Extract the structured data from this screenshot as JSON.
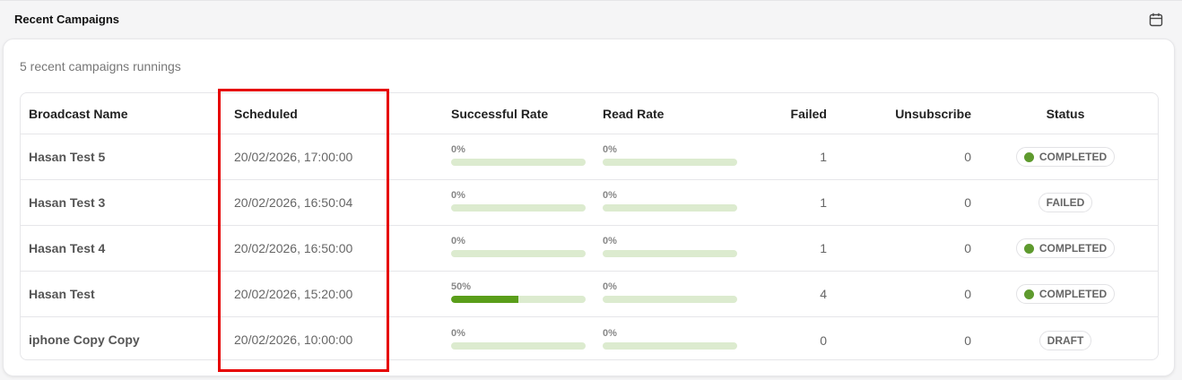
{
  "header": {
    "title": "Recent Campaigns",
    "calendar_icon": "calendar-icon"
  },
  "card": {
    "subtitle": "5 recent campaigns runnings"
  },
  "table": {
    "columns": {
      "name": "Broadcast Name",
      "scheduled": "Scheduled",
      "success": "Successful Rate",
      "read": "Read Rate",
      "failed": "Failed",
      "unsub": "Unsubscribe",
      "status": "Status"
    },
    "rows": [
      {
        "name": "Hasan Test 5",
        "scheduled": "20/02/2026, 17:00:00",
        "success_label": "0%",
        "success_value": 0,
        "read_label": "0%",
        "read_value": 0,
        "failed": "1",
        "unsub": "0",
        "status": "COMPLETED",
        "status_dot": true
      },
      {
        "name": "Hasan Test 3",
        "scheduled": "20/02/2026, 16:50:04",
        "success_label": "0%",
        "success_value": 0,
        "read_label": "0%",
        "read_value": 0,
        "failed": "1",
        "unsub": "0",
        "status": "FAILED",
        "status_dot": false
      },
      {
        "name": "Hasan Test 4",
        "scheduled": "20/02/2026, 16:50:00",
        "success_label": "0%",
        "success_value": 0,
        "read_label": "0%",
        "read_value": 0,
        "failed": "1",
        "unsub": "0",
        "status": "COMPLETED",
        "status_dot": true
      },
      {
        "name": "Hasan Test",
        "scheduled": "20/02/2026, 15:20:00",
        "success_label": "50%",
        "success_value": 50,
        "read_label": "0%",
        "read_value": 0,
        "failed": "4",
        "unsub": "0",
        "status": "COMPLETED",
        "status_dot": true
      },
      {
        "name": "iphone Copy Copy",
        "scheduled": "20/02/2026, 10:00:00",
        "success_label": "0%",
        "success_value": 0,
        "read_label": "0%",
        "read_value": 0,
        "failed": "0",
        "unsub": "0",
        "status": "DRAFT",
        "status_dot": false
      }
    ]
  },
  "colors": {
    "accent_green": "#5a9e1a",
    "bar_track": "#dcebcf",
    "highlight_red": "#e60000"
  }
}
